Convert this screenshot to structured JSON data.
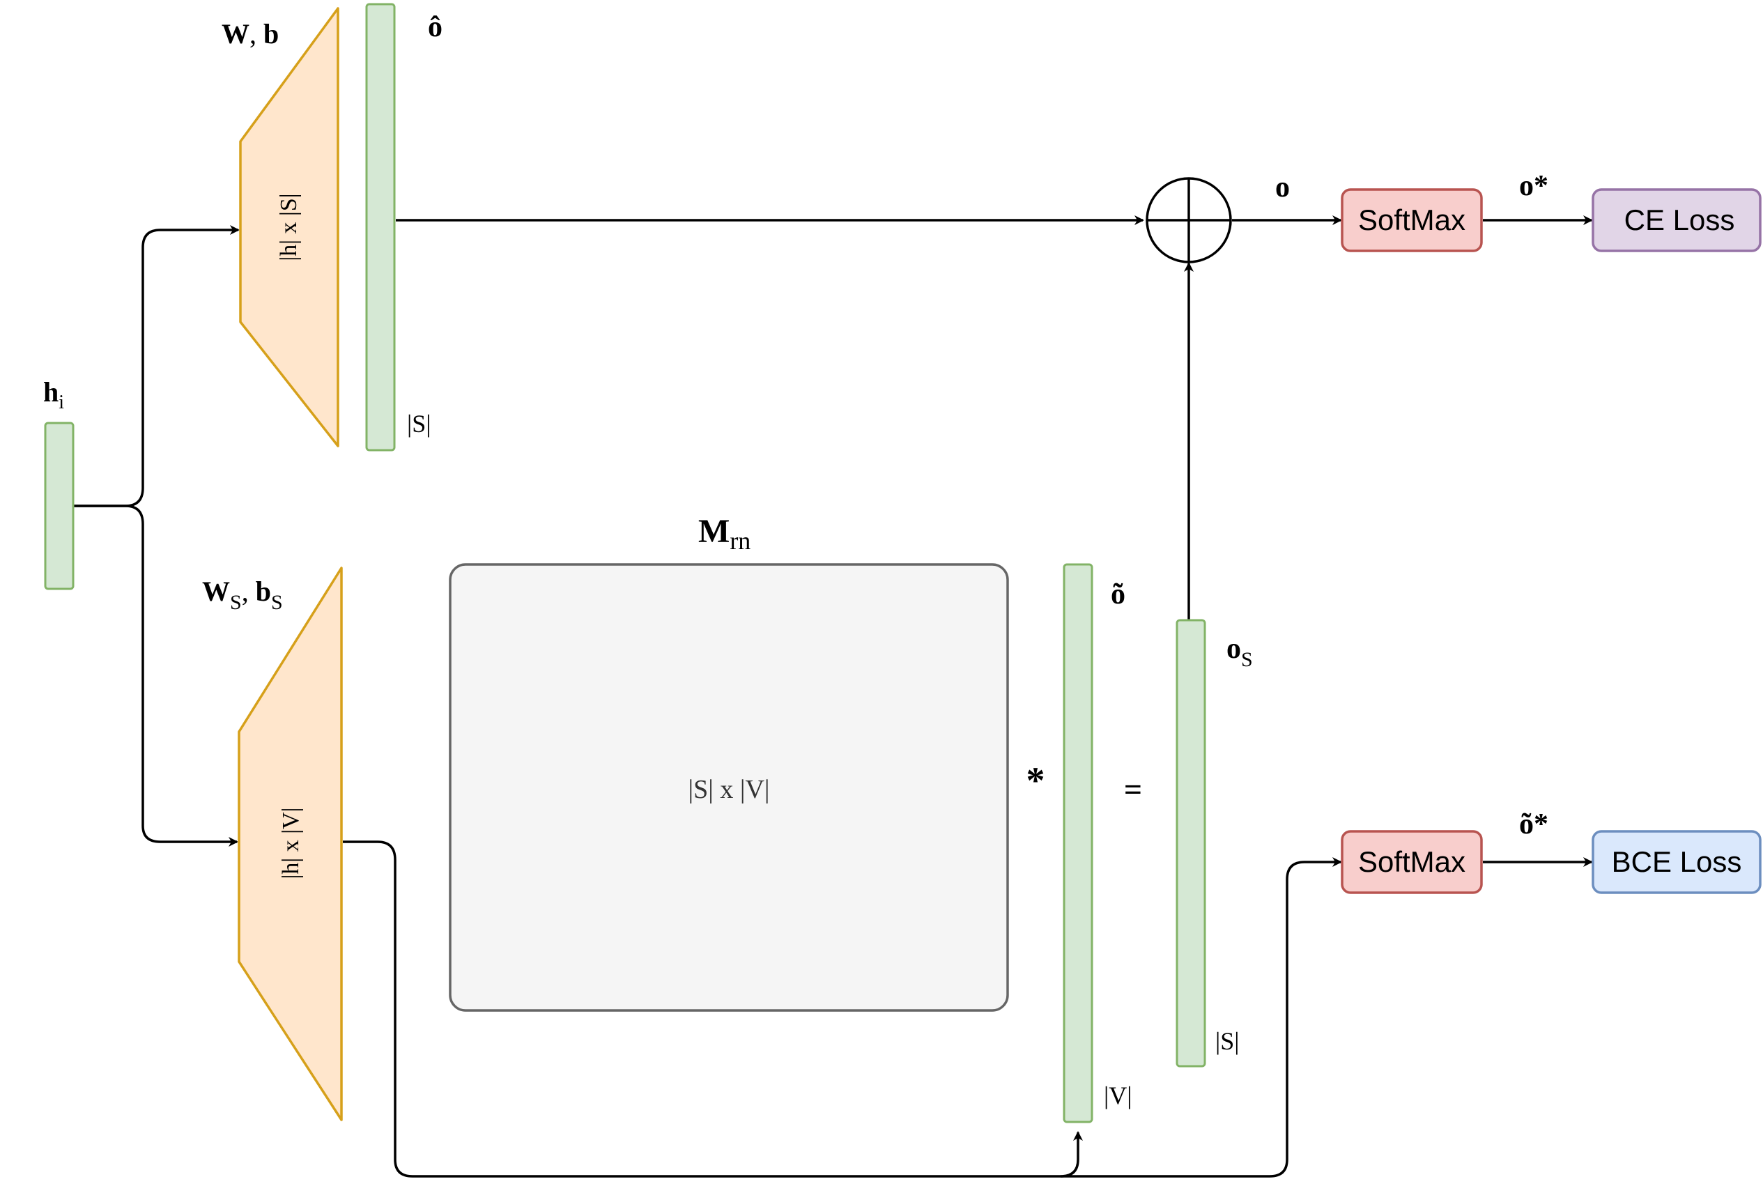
{
  "colors": {
    "vector_fill": "#d5e8d4",
    "vector_stroke": "#82b366",
    "trap_fill": "#ffe6cc",
    "trap_stroke": "#d6a01a",
    "matrix_fill": "#f5f5f5",
    "matrix_stroke": "#666666",
    "softmax_fill": "#f8cecc",
    "softmax_stroke": "#b85450",
    "ce_fill": "#e1d5e7",
    "ce_stroke": "#9673a6",
    "bce_fill": "#dae8fc",
    "bce_stroke": "#6c8ebf",
    "line": "#000000"
  },
  "labels": {
    "h_main": "h",
    "h_sub": "i",
    "w_main": "W",
    "w_comma": ", ",
    "b_main": "b",
    "ws_main": "W",
    "ws_sub": "S",
    "ws_comma": ", ",
    "bs_main": "b",
    "bs_sub": "S",
    "o_hat": "ô",
    "o_hat_dim": "|S|",
    "trap_top_text": "|h| x |S|",
    "trap_bottom_text": "|h| x |V|",
    "m_main": "M",
    "m_sub": "rn",
    "matrix_text": "|S| x |V|",
    "o_tilde": "õ",
    "o_tilde_dim": "|V|",
    "star": "*",
    "equals": "=",
    "os_main": "o",
    "os_sub": "S",
    "os_dim": "|S|",
    "o_label": "o",
    "o_star": "o*",
    "o_tilde_star": "õ*",
    "softmax_top": "SoftMax",
    "softmax_bottom": "SoftMax",
    "ce_loss": "CE Loss",
    "bce_loss": "BCE Loss"
  }
}
